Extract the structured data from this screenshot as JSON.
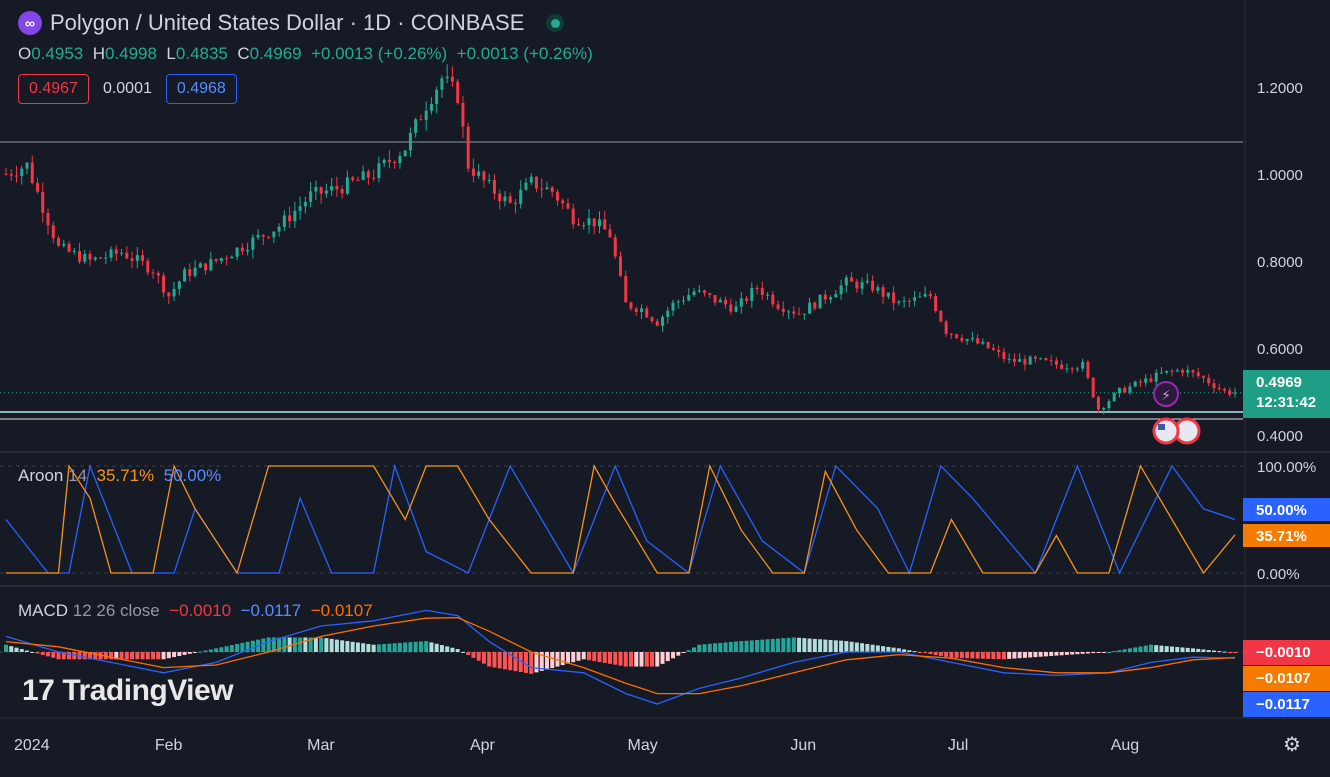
{
  "header": {
    "symbol_title": "Polygon / United States Dollar · 1D · COINBASE",
    "logo_glyph": "∞",
    "ohlc": {
      "o_label": "O",
      "o_value": "0.4953",
      "h_label": "H",
      "h_value": "0.4998",
      "l_label": "L",
      "l_value": "0.4835",
      "c_label": "C",
      "c_value": "0.4969",
      "change1": "+0.0013 (+0.26%)",
      "change2": "+0.0013 (+0.26%)"
    },
    "sell_price": "0.4967",
    "spread": "0.0001",
    "buy_price": "0.4968"
  },
  "price_axis": {
    "ticks": [
      "1.2000",
      "1.0000",
      "0.8000",
      "0.6000",
      "0.4000"
    ],
    "last_price": "0.4969",
    "countdown": "12:31:42"
  },
  "aroon": {
    "name": "Aroon",
    "length": "14",
    "value_up": "35.71%",
    "value_down": "50.00%",
    "axis_ticks": [
      "100.00%",
      "0.00%"
    ],
    "badge_down": "50.00%",
    "badge_up": "35.71%"
  },
  "macd": {
    "name": "MACD",
    "params": "12 26 close",
    "hist_value": "−0.0010",
    "macd_value": "−0.0117",
    "signal_value": "−0.0107",
    "badge_hist": "−0.0010",
    "badge_signal": "−0.0107",
    "badge_macd": "−0.0117"
  },
  "time_axis": {
    "labels": [
      "2024",
      "Feb",
      "Mar",
      "Apr",
      "May",
      "Jun",
      "Jul",
      "Aug"
    ]
  },
  "branding": {
    "name": "TradingView",
    "mark": "17"
  },
  "colors": {
    "background": "#161a25",
    "up": "#22ab94",
    "down": "#f23645",
    "aroon_up": "#f7931a",
    "aroon_down": "#2962ff",
    "macd": "#2962ff",
    "signal": "#ff6d00"
  },
  "chart_data": {
    "type": "candlestick",
    "ylim": [
      0.37,
      1.28
    ],
    "dates": [
      "Jan",
      "Feb",
      "Mar",
      "Apr",
      "May",
      "Jun",
      "Jul",
      "Aug"
    ],
    "price_keypoints": [
      [
        0,
        1.0
      ],
      [
        4,
        1.02
      ],
      [
        10,
        0.83
      ],
      [
        16,
        0.8
      ],
      [
        22,
        0.82
      ],
      [
        28,
        0.78
      ],
      [
        31,
        0.72
      ],
      [
        34,
        0.77
      ],
      [
        40,
        0.8
      ],
      [
        46,
        0.84
      ],
      [
        52,
        0.88
      ],
      [
        58,
        0.95
      ],
      [
        64,
        0.97
      ],
      [
        70,
        1.0
      ],
      [
        76,
        1.06
      ],
      [
        80,
        1.16
      ],
      [
        83,
        1.22
      ],
      [
        86,
        1.18
      ],
      [
        88,
        1.02
      ],
      [
        92,
        0.97
      ],
      [
        96,
        0.93
      ],
      [
        100,
        0.98
      ],
      [
        104,
        0.96
      ],
      [
        108,
        0.9
      ],
      [
        112,
        0.89
      ],
      [
        115,
        0.86
      ],
      [
        118,
        0.7
      ],
      [
        121,
        0.69
      ],
      [
        124,
        0.66
      ],
      [
        127,
        0.7
      ],
      [
        131,
        0.73
      ],
      [
        135,
        0.71
      ],
      [
        139,
        0.69
      ],
      [
        143,
        0.74
      ],
      [
        147,
        0.7
      ],
      [
        151,
        0.68
      ],
      [
        155,
        0.71
      ],
      [
        160,
        0.75
      ],
      [
        165,
        0.74
      ],
      [
        170,
        0.7
      ],
      [
        176,
        0.72
      ],
      [
        179,
        0.64
      ],
      [
        183,
        0.62
      ],
      [
        187,
        0.6
      ],
      [
        191,
        0.57
      ],
      [
        196,
        0.57
      ],
      [
        201,
        0.56
      ],
      [
        205,
        0.56
      ],
      [
        208,
        0.46
      ],
      [
        212,
        0.5
      ],
      [
        216,
        0.52
      ],
      [
        220,
        0.54
      ],
      [
        224,
        0.55
      ],
      [
        228,
        0.53
      ],
      [
        232,
        0.5
      ],
      [
        234,
        0.4969
      ]
    ],
    "aroon_up_keypoints": [
      [
        0,
        0
      ],
      [
        10,
        0
      ],
      [
        12,
        100
      ],
      [
        16,
        70
      ],
      [
        20,
        0
      ],
      [
        28,
        0
      ],
      [
        32,
        100
      ],
      [
        36,
        60
      ],
      [
        44,
        0
      ],
      [
        50,
        100
      ],
      [
        70,
        100
      ],
      [
        76,
        50
      ],
      [
        80,
        100
      ],
      [
        86,
        100
      ],
      [
        92,
        50
      ],
      [
        100,
        0
      ],
      [
        108,
        0
      ],
      [
        112,
        100
      ],
      [
        116,
        65
      ],
      [
        124,
        0
      ],
      [
        130,
        0
      ],
      [
        134,
        100
      ],
      [
        140,
        40
      ],
      [
        146,
        0
      ],
      [
        152,
        0
      ],
      [
        156,
        95
      ],
      [
        162,
        40
      ],
      [
        168,
        0
      ],
      [
        176,
        0
      ],
      [
        180,
        50
      ],
      [
        186,
        0
      ],
      [
        190,
        0
      ],
      [
        196,
        0
      ],
      [
        200,
        35
      ],
      [
        204,
        0
      ],
      [
        210,
        0
      ],
      [
        216,
        100
      ],
      [
        222,
        50
      ],
      [
        228,
        0
      ],
      [
        234,
        35.71
      ]
    ],
    "aroon_down_keypoints": [
      [
        0,
        50
      ],
      [
        8,
        0
      ],
      [
        12,
        0
      ],
      [
        16,
        100
      ],
      [
        24,
        0
      ],
      [
        32,
        0
      ],
      [
        36,
        60
      ],
      [
        44,
        0
      ],
      [
        52,
        0
      ],
      [
        56,
        70
      ],
      [
        62,
        0
      ],
      [
        70,
        0
      ],
      [
        74,
        100
      ],
      [
        80,
        20
      ],
      [
        88,
        0
      ],
      [
        96,
        100
      ],
      [
        108,
        0
      ],
      [
        116,
        100
      ],
      [
        122,
        30
      ],
      [
        130,
        0
      ],
      [
        136,
        100
      ],
      [
        144,
        30
      ],
      [
        152,
        0
      ],
      [
        158,
        100
      ],
      [
        166,
        60
      ],
      [
        172,
        0
      ],
      [
        178,
        100
      ],
      [
        184,
        70
      ],
      [
        196,
        0
      ],
      [
        204,
        100
      ],
      [
        212,
        0
      ],
      [
        222,
        100
      ],
      [
        228,
        60
      ],
      [
        234,
        50.0
      ]
    ],
    "macd_keypoints": [
      [
        0,
        0.03
      ],
      [
        10,
        0.0
      ],
      [
        20,
        -0.02
      ],
      [
        30,
        -0.04
      ],
      [
        40,
        -0.02
      ],
      [
        50,
        0.02
      ],
      [
        60,
        0.05
      ],
      [
        70,
        0.06
      ],
      [
        80,
        0.08
      ],
      [
        86,
        0.07
      ],
      [
        92,
        0.02
      ],
      [
        100,
        -0.03
      ],
      [
        110,
        -0.04
      ],
      [
        118,
        -0.08
      ],
      [
        124,
        -0.1
      ],
      [
        132,
        -0.07
      ],
      [
        140,
        -0.05
      ],
      [
        150,
        -0.02
      ],
      [
        160,
        0.0
      ],
      [
        170,
        0.0
      ],
      [
        180,
        -0.02
      ],
      [
        190,
        -0.04
      ],
      [
        200,
        -0.045
      ],
      [
        210,
        -0.04
      ],
      [
        218,
        -0.02
      ],
      [
        226,
        -0.01
      ],
      [
        234,
        -0.0117
      ]
    ],
    "signal_keypoints": [
      [
        0,
        0.02
      ],
      [
        10,
        0.01
      ],
      [
        20,
        -0.01
      ],
      [
        30,
        -0.03
      ],
      [
        40,
        -0.025
      ],
      [
        50,
        0.0
      ],
      [
        60,
        0.03
      ],
      [
        70,
        0.05
      ],
      [
        80,
        0.065
      ],
      [
        86,
        0.066
      ],
      [
        92,
        0.04
      ],
      [
        100,
        0.0
      ],
      [
        110,
        -0.03
      ],
      [
        118,
        -0.06
      ],
      [
        124,
        -0.08
      ],
      [
        132,
        -0.08
      ],
      [
        140,
        -0.065
      ],
      [
        150,
        -0.04
      ],
      [
        160,
        -0.015
      ],
      [
        170,
        -0.005
      ],
      [
        180,
        -0.012
      ],
      [
        190,
        -0.03
      ],
      [
        200,
        -0.04
      ],
      [
        210,
        -0.04
      ],
      [
        218,
        -0.03
      ],
      [
        226,
        -0.015
      ],
      [
        234,
        -0.0107
      ]
    ]
  }
}
